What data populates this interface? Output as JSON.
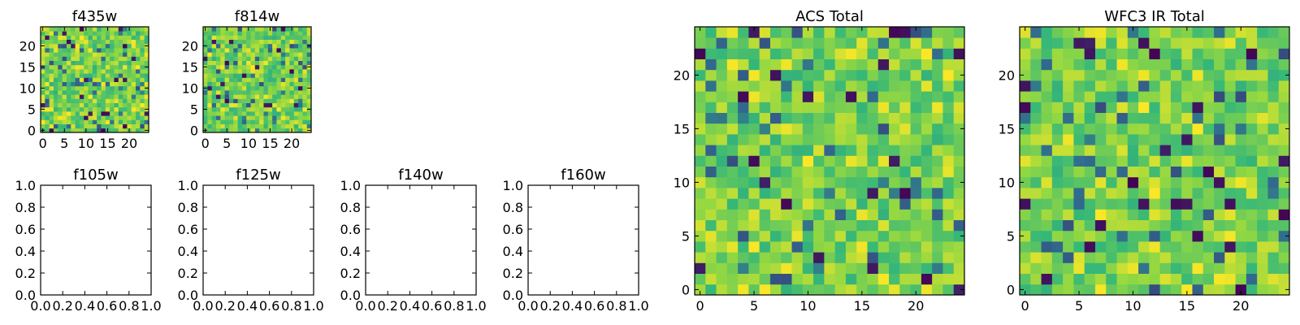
{
  "figure": {
    "background": "#ffffff",
    "colormap": "viridis",
    "colormap_stops": [
      "#440154",
      "#31688e",
      "#35b779",
      "#90d743",
      "#fde725"
    ]
  },
  "chart_data": [
    {
      "type": "heatmap",
      "title": "f435w",
      "xlabel": "",
      "ylabel": "",
      "xlim": [
        -0.5,
        24.5
      ],
      "ylim": [
        -0.5,
        24.5
      ],
      "xticks": [
        "0",
        "5",
        "10",
        "15",
        "20"
      ],
      "yticks": [
        "0",
        "5",
        "10",
        "15",
        "20"
      ],
      "grid_size": [
        25,
        25
      ],
      "value_range": [
        0,
        1
      ],
      "has_data": true,
      "grid": false
    },
    {
      "type": "heatmap",
      "title": "f814w",
      "xlabel": "",
      "ylabel": "",
      "xlim": [
        -0.5,
        24.5
      ],
      "ylim": [
        -0.5,
        24.5
      ],
      "xticks": [
        "0",
        "5",
        "10",
        "15",
        "20"
      ],
      "yticks": [
        "0",
        "5",
        "10",
        "15",
        "20"
      ],
      "grid_size": [
        25,
        25
      ],
      "value_range": [
        0,
        1
      ],
      "has_data": true,
      "grid": false
    },
    {
      "type": "heatmap",
      "title": "f105w",
      "xlim": [
        0,
        1
      ],
      "ylim": [
        0,
        1
      ],
      "xticks": [
        "0.0",
        "0.2",
        "0.4",
        "0.6",
        "0.8",
        "1.0"
      ],
      "yticks": [
        "0.0",
        "0.2",
        "0.4",
        "0.6",
        "0.8",
        "1.0"
      ],
      "has_data": false,
      "grid": false
    },
    {
      "type": "heatmap",
      "title": "f125w",
      "xlim": [
        0,
        1
      ],
      "ylim": [
        0,
        1
      ],
      "xticks": [
        "0.0",
        "0.2",
        "0.4",
        "0.6",
        "0.8",
        "1.0"
      ],
      "yticks": [
        "0.0",
        "0.2",
        "0.4",
        "0.6",
        "0.8",
        "1.0"
      ],
      "has_data": false,
      "grid": false
    },
    {
      "type": "heatmap",
      "title": "f140w",
      "xlim": [
        0,
        1
      ],
      "ylim": [
        0,
        1
      ],
      "xticks": [
        "0.0",
        "0.2",
        "0.4",
        "0.6",
        "0.8",
        "1.0"
      ],
      "yticks": [
        "0.0",
        "0.2",
        "0.4",
        "0.6",
        "0.8",
        "1.0"
      ],
      "has_data": false,
      "grid": false
    },
    {
      "type": "heatmap",
      "title": "f160w",
      "xlim": [
        0,
        1
      ],
      "ylim": [
        0,
        1
      ],
      "xticks": [
        "0.0",
        "0.2",
        "0.4",
        "0.6",
        "0.8",
        "1.0"
      ],
      "yticks": [
        "0.0",
        "0.2",
        "0.4",
        "0.6",
        "0.8",
        "1.0"
      ],
      "has_data": false,
      "grid": false
    },
    {
      "type": "heatmap",
      "title": "ACS Total",
      "xlim": [
        -0.5,
        24.5
      ],
      "ylim": [
        -0.5,
        24.5
      ],
      "xticks": [
        "0",
        "5",
        "10",
        "15",
        "20"
      ],
      "yticks": [
        "0",
        "5",
        "10",
        "15",
        "20"
      ],
      "grid_size": [
        25,
        25
      ],
      "value_range": [
        0,
        1
      ],
      "has_data": true,
      "grid": false
    },
    {
      "type": "heatmap",
      "title": "WFC3 IR Total",
      "xlim": [
        -0.5,
        24.5
      ],
      "ylim": [
        -0.5,
        24.5
      ],
      "xticks": [
        "0",
        "5",
        "10",
        "15",
        "20"
      ],
      "yticks": [
        "0",
        "5",
        "10",
        "15",
        "20"
      ],
      "grid_size": [
        25,
        25
      ],
      "value_range": [
        0,
        1
      ],
      "has_data": true,
      "grid": false
    }
  ]
}
